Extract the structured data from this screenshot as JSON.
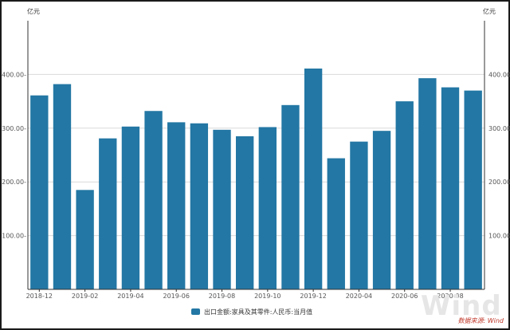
{
  "chart_data": {
    "type": "bar",
    "unit_left": "亿元",
    "unit_right": "亿元",
    "categories": [
      "2018-12",
      "2019-01",
      "2019-02",
      "2019-03",
      "2019-04",
      "2019-05",
      "2019-06",
      "2019-07",
      "2019-08",
      "2019-09",
      "2019-10",
      "2019-11",
      "2019-12",
      "2020-01",
      "2020-04",
      "2020-05",
      "2020-06",
      "2020-07",
      "2020-08",
      "2020-09"
    ],
    "x_tick_labels": [
      "2018-12",
      "2019-02",
      "2019-04",
      "2019-06",
      "2019-08",
      "2019-10",
      "2019-12",
      "2020-04",
      "2020-06",
      "2020-08"
    ],
    "series": [
      {
        "name": "出口金额:家具及其零件:人民币:当月值",
        "values": [
          361,
          382,
          185,
          281,
          303,
          332,
          311,
          309,
          297,
          285,
          302,
          343,
          411,
          244,
          275,
          295,
          350,
          393,
          376,
          370
        ]
      }
    ],
    "ylim": [
      0,
      500
    ],
    "yticks": [
      100,
      200,
      300,
      400
    ],
    "ytick_labels_left": [
      "100.00-",
      "200.00-",
      "300.00-",
      "400.00-"
    ],
    "ytick_labels_right": [
      "100.00",
      "200.00",
      "300.00",
      "400.00"
    ],
    "legend_position": "bottom-center",
    "grid": true,
    "bar_color": "#2377a4"
  },
  "watermark": "Wind",
  "source": "数据来源: Wind"
}
